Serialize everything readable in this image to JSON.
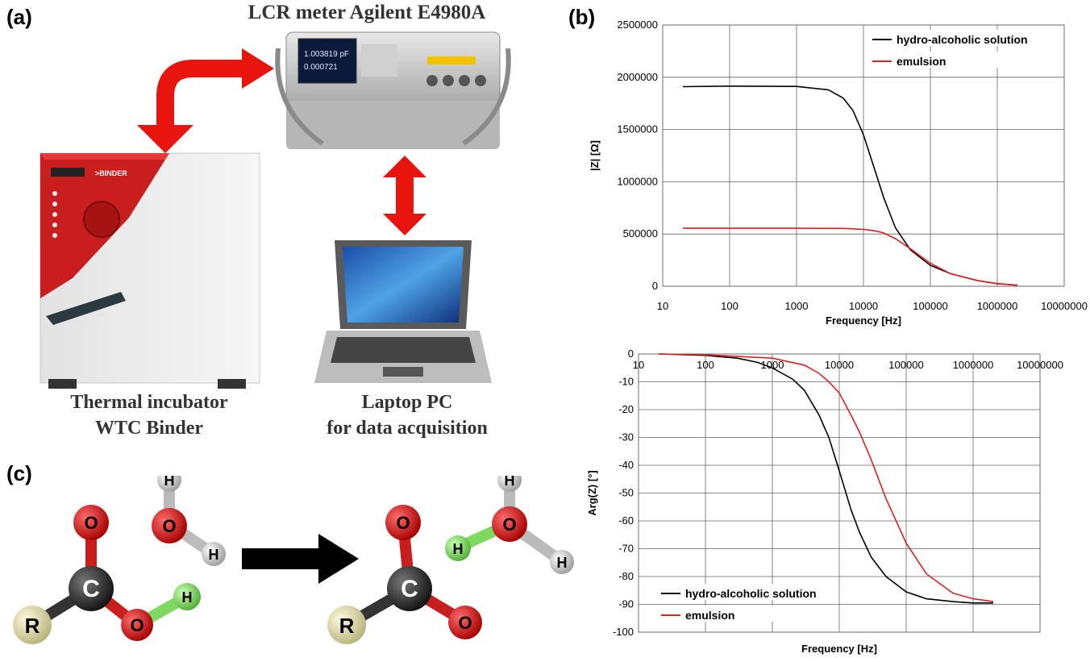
{
  "panels": {
    "a": "(a)",
    "b": "(b)",
    "c": "(c)"
  },
  "setup": {
    "lcr_title": "LCR meter Agilent E4980A",
    "incubator_caption": [
      "Thermal incubator",
      "WTC Binder"
    ],
    "laptop_caption": [
      "Laptop PC",
      "for data acquisition"
    ],
    "instrument_display": [
      "1.003819 pF",
      "0.000721"
    ],
    "binder_brand": ">BINDER"
  },
  "molecules": {
    "left": {
      "atoms": [
        "O",
        "C",
        "O",
        "H",
        "R"
      ],
      "water": [
        "H",
        "O",
        "H"
      ]
    },
    "right": {
      "atoms": [
        "O",
        "C",
        "O",
        "R"
      ],
      "hydronium": [
        "H",
        "O",
        "H",
        "H"
      ]
    }
  },
  "colors": {
    "solution": "#000000",
    "emulsion": "#e02020",
    "arrow_red": "#e8150e",
    "oxygen": "#cc1111",
    "carbon": "#222222",
    "hydrogen": "#d8d8d8",
    "hydrogen_green": "#7fd860",
    "r_group": "#e6e0a8"
  },
  "chart_data": [
    {
      "type": "line",
      "xscale": "log",
      "xlabel": "Frequency [Hz]",
      "ylabel": "|Z| [Ω]",
      "xlim": [
        10,
        10000000
      ],
      "ylim": [
        0,
        2500000
      ],
      "xticks": [
        "10",
        "100",
        "1000",
        "10000",
        "100000",
        "1000000",
        "10000000"
      ],
      "yticks": [
        "0",
        "500000",
        "1000000",
        "1500000",
        "2000000",
        "2500000"
      ],
      "grid": true,
      "legend_position": "top-right",
      "series": [
        {
          "name": "hydro-alcoholic solution",
          "color": "#000000",
          "x": [
            20,
            100,
            1000,
            3000,
            5000,
            7000,
            10000,
            15000,
            20000,
            30000,
            50000,
            100000,
            200000,
            500000,
            1000000,
            2000000
          ],
          "y": [
            1910000,
            1915000,
            1912000,
            1880000,
            1800000,
            1680000,
            1450000,
            1100000,
            850000,
            560000,
            350000,
            200000,
            120000,
            55000,
            25000,
            10000
          ]
        },
        {
          "name": "emulsion",
          "color": "#e02020",
          "x": [
            20,
            100,
            1000,
            5000,
            10000,
            15000,
            20000,
            30000,
            50000,
            100000,
            200000,
            500000,
            1000000,
            2000000
          ],
          "y": [
            555000,
            555000,
            555000,
            553000,
            545000,
            530000,
            510000,
            455000,
            360000,
            220000,
            120000,
            55000,
            25000,
            10000
          ]
        }
      ]
    },
    {
      "type": "line",
      "xscale": "log",
      "xlabel": "Frequency [Hz]",
      "ylabel": "Arg(Z) [°]",
      "xlim": [
        10,
        10000000
      ],
      "ylim": [
        -100,
        0
      ],
      "xticks": [
        "10",
        "100",
        "1000",
        "10000",
        "100000",
        "1000000",
        "10000000"
      ],
      "yticks": [
        "0",
        "-10",
        "-20",
        "-30",
        "-40",
        "-50",
        "-60",
        "-70",
        "-80",
        "-90",
        "-100"
      ],
      "grid": true,
      "legend_position": "bottom-left",
      "series": [
        {
          "name": "hydro-alcoholic solution",
          "color": "#000000",
          "x": [
            20,
            100,
            300,
            600,
            1000,
            2000,
            3000,
            5000,
            7000,
            10000,
            15000,
            20000,
            30000,
            50000,
            100000,
            200000,
            500000,
            1000000,
            2000000
          ],
          "y": [
            0,
            -0.5,
            -1.5,
            -3,
            -5,
            -9,
            -13,
            -22,
            -30,
            -42,
            -56,
            -64,
            -73,
            -80,
            -85.5,
            -88,
            -89,
            -89.5,
            -89.5
          ]
        },
        {
          "name": "emulsion",
          "color": "#e02020",
          "x": [
            20,
            100,
            1000,
            3000,
            5000,
            7000,
            10000,
            15000,
            20000,
            30000,
            50000,
            100000,
            200000,
            500000,
            1000000,
            2000000
          ],
          "y": [
            0,
            -0.3,
            -1.5,
            -4,
            -7,
            -10,
            -14,
            -22,
            -28,
            -38,
            -52,
            -68,
            -79,
            -86,
            -88,
            -89
          ]
        }
      ]
    }
  ]
}
